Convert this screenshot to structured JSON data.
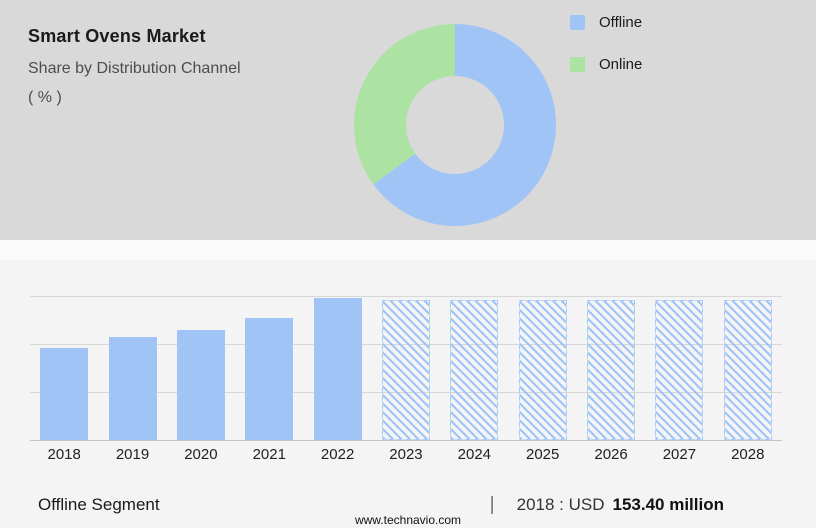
{
  "header": {
    "title": "Smart Ovens Market",
    "subtitle": "Share by Distribution Channel",
    "unit": "( % )"
  },
  "colors": {
    "offline_blue": "#a1c4f7",
    "online_green": "#ace2a2",
    "panel_gray": "#d9d9d9"
  },
  "legend": [
    {
      "label": "Offline",
      "color": "#a1c4f7"
    },
    {
      "label": "Online",
      "color": "#ace2a2"
    }
  ],
  "chart_data": [
    {
      "type": "pie",
      "donut": true,
      "title": "Smart Ovens Market - Share by Distribution Channel (%)",
      "labels": [
        "Offline",
        "Online"
      ],
      "values": [
        65,
        35
      ],
      "colors": [
        "#a1c4f7",
        "#ace2a2"
      ],
      "legend_position": "right"
    },
    {
      "type": "bar",
      "title": "Offline Segment (USD million)",
      "categories": [
        "2018",
        "2019",
        "2020",
        "2021",
        "2022",
        "2023",
        "2024",
        "2025",
        "2026",
        "2027",
        "2028"
      ],
      "values": [
        153.4,
        172,
        183,
        203,
        237,
        233,
        233,
        233,
        233,
        233,
        233
      ],
      "forecast_start_index": 5,
      "note": "Bars 2023-2028 rendered hatched (forecast); only 2018 value (USD 153.40 million) is labeled on screen, other values estimated from bar heights",
      "ylim": [
        0,
        240
      ],
      "grid": true,
      "bar_color": "#a1c4f7"
    }
  ],
  "footer": {
    "segment_label": "Offline Segment",
    "separator": "|",
    "annotation_prefix": "2018 : USD",
    "annotation_value": "153.40 million",
    "website": "www.technavio.com"
  }
}
